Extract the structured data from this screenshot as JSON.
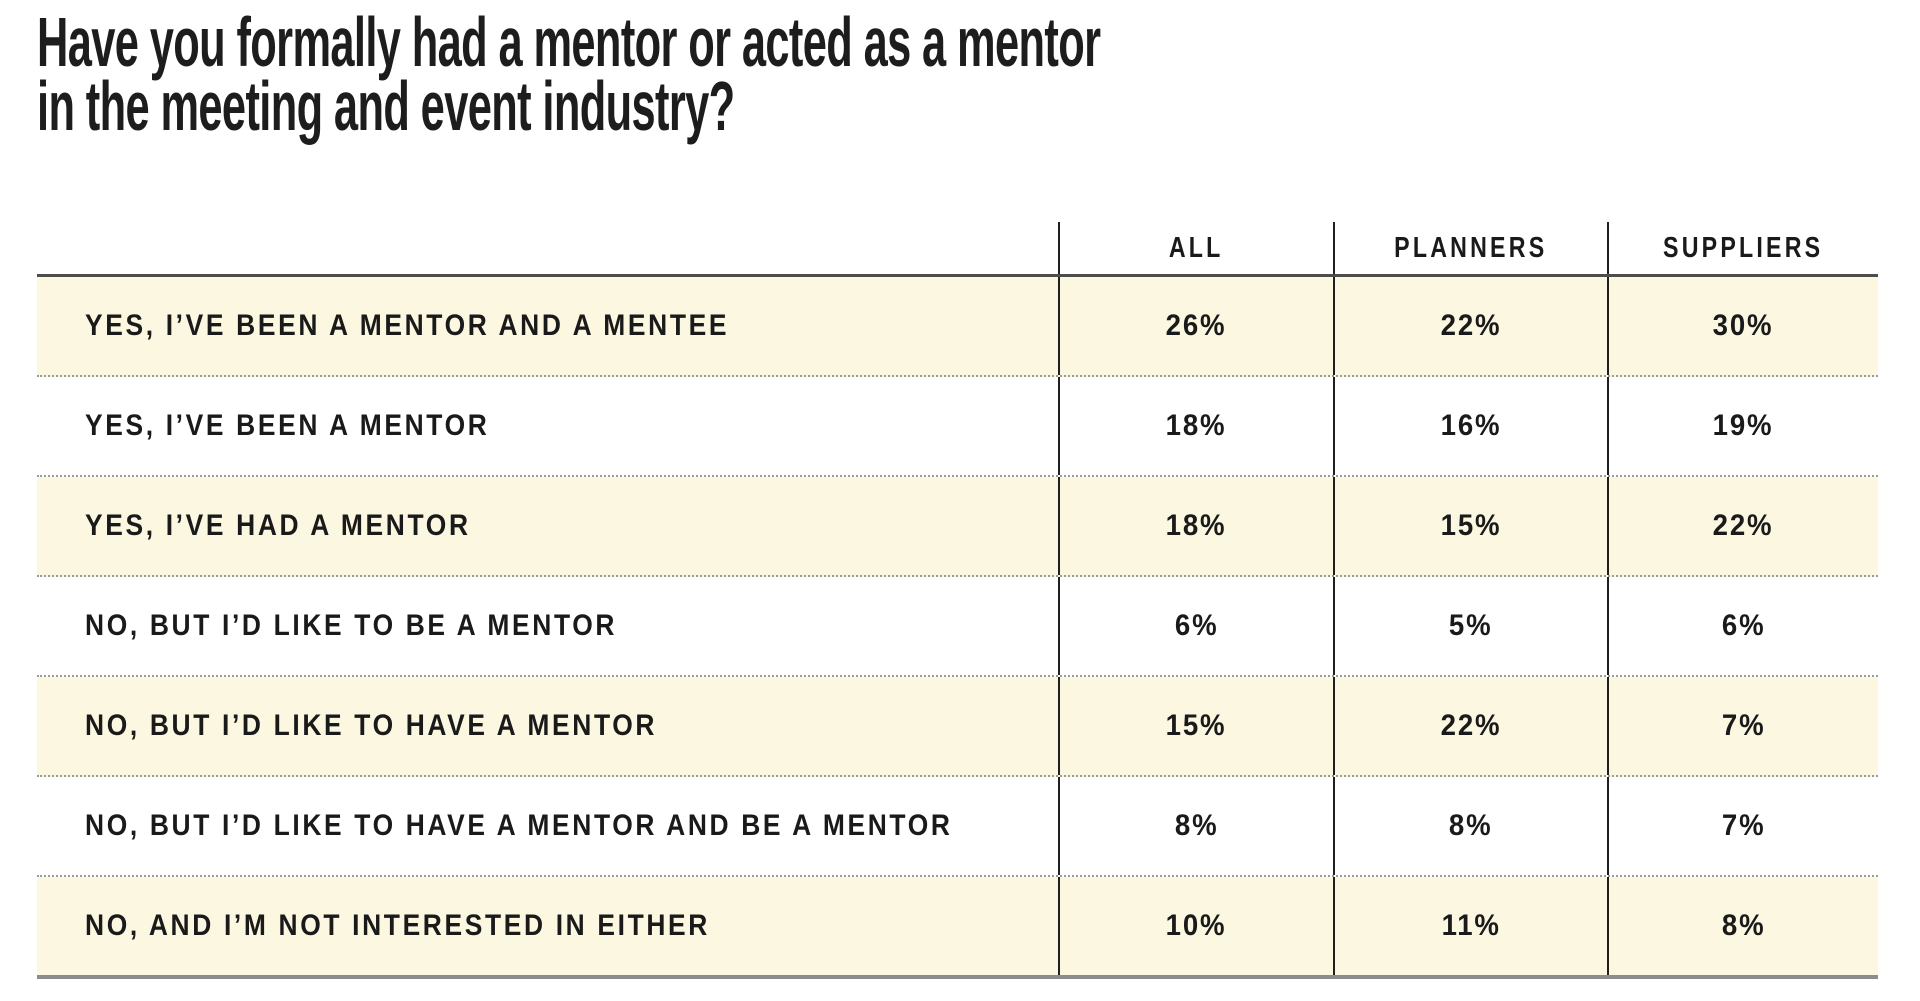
{
  "title": {
    "line1": "Have you formally had a mentor or acted as a mentor",
    "line2": "in the meeting and event industry?"
  },
  "chart_data": {
    "type": "table",
    "title": "Have you formally had a mentor or acted as a mentor in the meeting and event industry?",
    "columns": [
      "ALL",
      "PLANNERS",
      "SUPPLIERS"
    ],
    "rows": [
      {
        "label": "YES, I’VE BEEN A MENTOR AND A MENTEE",
        "all": "26%",
        "planners": "22%",
        "suppliers": "30%"
      },
      {
        "label": "YES, I’VE BEEN A MENTOR",
        "all": "18%",
        "planners": "16%",
        "suppliers": "19%"
      },
      {
        "label": "YES, I’VE HAD A MENTOR",
        "all": "18%",
        "planners": "15%",
        "suppliers": "22%"
      },
      {
        "label": "NO, BUT I’D LIKE TO BE A MENTOR",
        "all": "6%",
        "planners": "5%",
        "suppliers": "6%"
      },
      {
        "label": "NO, BUT I’D LIKE TO HAVE A MENTOR",
        "all": "15%",
        "planners": "22%",
        "suppliers": "7%"
      },
      {
        "label": "NO, BUT I’D LIKE TO HAVE A MENTOR AND BE A MENTOR",
        "all": "8%",
        "planners": "8%",
        "suppliers": "7%"
      },
      {
        "label": "NO, AND I’M NOT INTERESTED IN EITHER",
        "all": "10%",
        "planners": "11%",
        "suppliers": "8%"
      }
    ],
    "values_numeric": {
      "series": [
        {
          "name": "ALL",
          "values": [
            26,
            18,
            18,
            6,
            15,
            8,
            10
          ]
        },
        {
          "name": "PLANNERS",
          "values": [
            22,
            16,
            15,
            5,
            22,
            8,
            11
          ]
        },
        {
          "name": "SUPPLIERS",
          "values": [
            30,
            19,
            22,
            6,
            7,
            7,
            8
          ]
        }
      ],
      "unit": "%"
    },
    "colors": {
      "row_stripe": "#fbf7e1",
      "text": "#1a1a1a",
      "top_rule": "#4d4d4d",
      "bottom_rule": "#8c8c8c",
      "column_rule": "#1f1f1f",
      "dotted_rule": "#9a9a9a",
      "background": "#ffffff"
    }
  }
}
